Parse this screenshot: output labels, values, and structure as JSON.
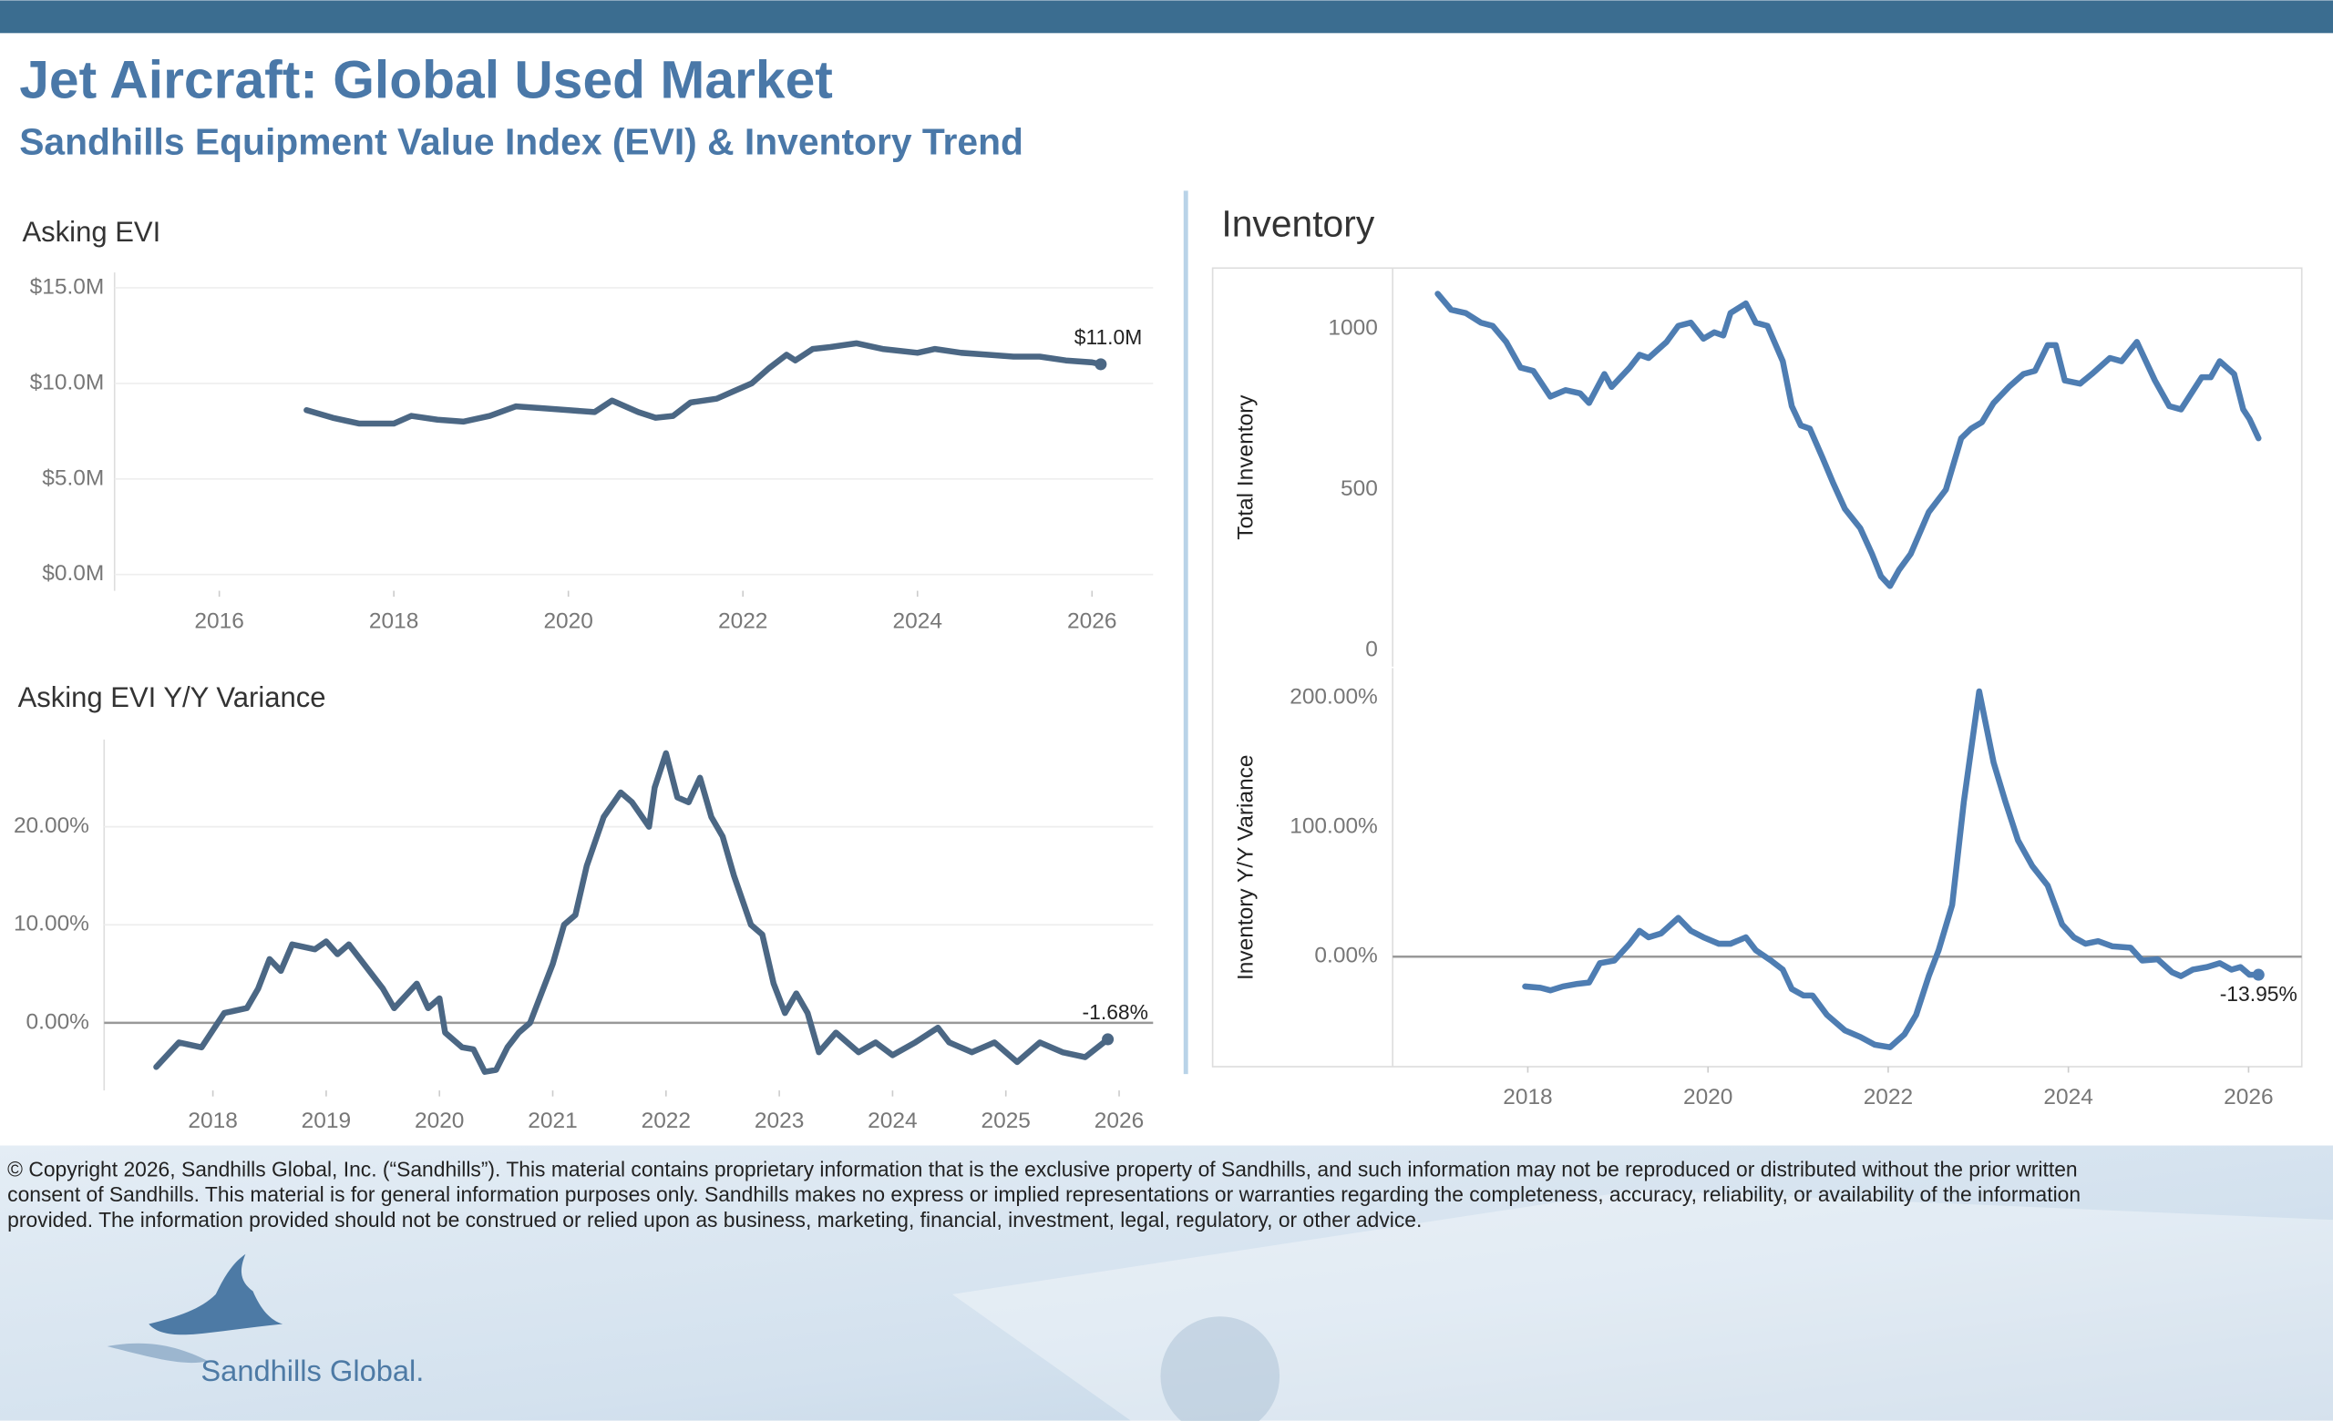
{
  "header": {
    "title": "Jet Aircraft:  Global Used Market",
    "subtitle": "Sandhills Equipment Value Index (EVI) & Inventory Trend"
  },
  "chart_data": [
    {
      "type": "line",
      "title": "Asking EVI",
      "color": "#4b6784",
      "grid": true,
      "x": [
        2017.0,
        2017.3,
        2017.6,
        2018.0,
        2018.2,
        2018.5,
        2018.8,
        2019.1,
        2019.4,
        2019.7,
        2020.0,
        2020.3,
        2020.5,
        2020.8,
        2021.0,
        2021.2,
        2021.4,
        2021.7,
        2021.9,
        2022.1,
        2022.3,
        2022.5,
        2022.6,
        2022.8,
        2023.0,
        2023.3,
        2023.6,
        2024.0,
        2024.2,
        2024.5,
        2024.8,
        2025.1,
        2025.4,
        2025.7,
        2026.0,
        2026.1
      ],
      "values": [
        8.6,
        8.2,
        7.9,
        7.9,
        8.3,
        8.1,
        8.0,
        8.3,
        8.8,
        8.7,
        8.6,
        8.5,
        9.1,
        8.5,
        8.2,
        8.3,
        9.0,
        9.2,
        9.6,
        10.0,
        10.8,
        11.5,
        11.2,
        11.8,
        11.9,
        12.1,
        11.8,
        11.6,
        11.8,
        11.6,
        11.5,
        11.4,
        11.4,
        11.2,
        11.1,
        11.0
      ],
      "end_label": "$11.0M",
      "xlim": [
        2014.8,
        2026.7
      ],
      "xticks": [
        2016,
        2018,
        2020,
        2022,
        2024,
        2026
      ],
      "ylim": [
        -0.85,
        15.8
      ],
      "yticks": [
        {
          "value": 0,
          "label": "$0.0M"
        },
        {
          "value": 5,
          "label": "$5.0M"
        },
        {
          "value": 10,
          "label": "$10.0M"
        },
        {
          "value": 15,
          "label": "$15.0M"
        }
      ]
    },
    {
      "type": "line",
      "title": "Asking EVI Y/Y Variance",
      "color": "#4b6784",
      "grid": true,
      "zero_line": true,
      "x": [
        2017.5,
        2017.7,
        2017.9,
        2018.1,
        2018.3,
        2018.4,
        2018.5,
        2018.6,
        2018.7,
        2018.9,
        2019.0,
        2019.1,
        2019.2,
        2019.3,
        2019.5,
        2019.6,
        2019.8,
        2019.9,
        2020.0,
        2020.05,
        2020.2,
        2020.3,
        2020.4,
        2020.5,
        2020.6,
        2020.7,
        2020.8,
        2021.0,
        2021.1,
        2021.2,
        2021.3,
        2021.45,
        2021.6,
        2021.7,
        2021.85,
        2021.9,
        2022.0,
        2022.1,
        2022.2,
        2022.3,
        2022.4,
        2022.5,
        2022.6,
        2022.75,
        2022.85,
        2022.95,
        2023.05,
        2023.15,
        2023.25,
        2023.35,
        2023.5,
        2023.7,
        2023.85,
        2024.0,
        2024.2,
        2024.4,
        2024.5,
        2024.7,
        2024.9,
        2025.1,
        2025.3,
        2025.5,
        2025.7,
        2025.9
      ],
      "values": [
        -4.5,
        -2,
        -2.5,
        1,
        1.5,
        3.5,
        6.5,
        5.3,
        8,
        7.5,
        8.3,
        7,
        8,
        6.5,
        3.5,
        1.5,
        4,
        1.5,
        2.5,
        -1,
        -2.5,
        -2.7,
        -5,
        -4.8,
        -2.5,
        -1,
        0,
        6,
        10,
        11,
        16,
        21,
        23.5,
        22.5,
        20,
        24,
        27.5,
        23,
        22.5,
        25,
        21,
        19,
        15,
        10,
        9,
        4,
        1,
        3,
        1,
        -3,
        -1,
        -3,
        -2,
        -3.3,
        -2,
        -0.5,
        -2,
        -3,
        -2,
        -4,
        -2,
        -3,
        -3.5,
        -1.68
      ],
      "end_label": "-1.68%",
      "xlim": [
        2017.04,
        2026.3
      ],
      "xticks": [
        2018,
        2019,
        2020,
        2021,
        2022,
        2023,
        2024,
        2025,
        2026
      ],
      "ylim": [
        -6.9,
        28.9
      ],
      "yticks": [
        {
          "value": 0,
          "label": "0.00%"
        },
        {
          "value": 10,
          "label": "10.00%"
        },
        {
          "value": 20,
          "label": "20.00%"
        }
      ]
    },
    {
      "type": "line",
      "title": "Inventory",
      "y_label": "Total Inventory",
      "color": "#4e7db2",
      "grid": false,
      "x": [
        2017.0,
        2017.15,
        2017.31,
        2017.48,
        2017.61,
        2017.76,
        2017.92,
        2018.06,
        2018.25,
        2018.42,
        2018.58,
        2018.68,
        2018.85,
        2018.93,
        2019.13,
        2019.24,
        2019.34,
        2019.54,
        2019.67,
        2019.81,
        2019.95,
        2020.07,
        2020.17,
        2020.25,
        2020.42,
        2020.53,
        2020.66,
        2020.83,
        2020.93,
        2021.03,
        2021.13,
        2021.27,
        2021.39,
        2021.52,
        2021.69,
        2021.82,
        2021.92,
        2022.02,
        2022.12,
        2022.25,
        2022.45,
        2022.64,
        2022.81,
        2022.92,
        2023.04,
        2023.17,
        2023.34,
        2023.5,
        2023.63,
        2023.77,
        2023.86,
        2023.96,
        2024.13,
        2024.26,
        2024.46,
        2024.59,
        2024.76,
        2024.96,
        2025.12,
        2025.25,
        2025.48,
        2025.58,
        2025.68,
        2025.84,
        2025.94,
        2026.01,
        2026.11
      ],
      "values": [
        1110,
        1060,
        1050,
        1020,
        1010,
        960,
        880,
        870,
        790,
        810,
        800,
        770,
        860,
        820,
        880,
        920,
        910,
        960,
        1010,
        1020,
        970,
        990,
        980,
        1050,
        1080,
        1020,
        1010,
        900,
        760,
        700,
        690,
        600,
        520,
        440,
        380,
        300,
        230,
        200,
        250,
        300,
        430,
        500,
        660,
        690,
        710,
        770,
        820,
        860,
        870,
        950,
        950,
        840,
        830,
        860,
        910,
        900,
        960,
        840,
        760,
        750,
        850,
        850,
        900,
        860,
        750,
        720,
        660
      ],
      "xlim": [
        2016.5,
        2026.59
      ],
      "ylim": [
        -51,
        1190
      ],
      "yticks": [
        0,
        500,
        1000
      ]
    },
    {
      "type": "line",
      "y_label": "Inventory  Y/Y Variance",
      "color": "#4e7db2",
      "grid": false,
      "zero_line": true,
      "x": [
        2017.97,
        2018.14,
        2018.25,
        2018.39,
        2018.55,
        2018.68,
        2018.8,
        2018.96,
        2019.13,
        2019.24,
        2019.34,
        2019.48,
        2019.67,
        2019.81,
        2019.95,
        2020.12,
        2020.25,
        2020.42,
        2020.53,
        2020.7,
        2020.83,
        2020.93,
        2021.06,
        2021.16,
        2021.32,
        2021.52,
        2021.69,
        2021.85,
        2022.02,
        2022.18,
        2022.31,
        2022.45,
        2022.56,
        2022.71,
        2022.84,
        2023.01,
        2023.17,
        2023.3,
        2023.44,
        2023.6,
        2023.77,
        2023.93,
        2024.06,
        2024.19,
        2024.33,
        2024.49,
        2024.69,
        2024.82,
        2024.99,
        2025.15,
        2025.25,
        2025.38,
        2025.54,
        2025.68,
        2025.81,
        2025.91,
        2026.01,
        2026.11
      ],
      "values": [
        -23,
        -24,
        -26,
        -23,
        -21,
        -20,
        -5,
        -3,
        10,
        20,
        15,
        18,
        30,
        20,
        15,
        10,
        10,
        15,
        5,
        -3,
        -10,
        -25,
        -30,
        -30,
        -45,
        -57,
        -62,
        -68,
        -70,
        -60,
        -45,
        -15,
        5,
        40,
        120,
        205,
        150,
        120,
        90,
        70,
        55,
        25,
        15,
        10,
        12,
        8,
        7,
        -3,
        -2,
        -12,
        -15,
        -10,
        -8,
        -5,
        -10,
        -8,
        -14,
        -13.95
      ],
      "end_label": "-13.95%",
      "xlim": [
        2016.5,
        2026.59
      ],
      "xticks": [
        2018,
        2020,
        2022,
        2024,
        2026
      ],
      "ylim": [
        -85,
        223
      ],
      "yticks": [
        {
          "value": 0,
          "label": "0.00%"
        },
        {
          "value": 100,
          "label": "100.00%"
        },
        {
          "value": 200,
          "label": "200.00%"
        }
      ]
    }
  ],
  "footer": {
    "copyright_lines": [
      "© Copyright 2026, Sandhills Global, Inc. (“Sandhills”). This material contains proprietary information that is the exclusive property of Sandhills, and such information may not be reproduced or distributed without the prior written",
      "consent of Sandhills. This material is for general information purposes only. Sandhills makes no express or implied representations or warranties regarding the completeness, accuracy, reliability, or availability of the information",
      "provided. The information provided should not be construed or relied upon as business, marketing, financial, investment, legal, regulatory, or other advice."
    ],
    "logo": "Sandhills Global."
  }
}
